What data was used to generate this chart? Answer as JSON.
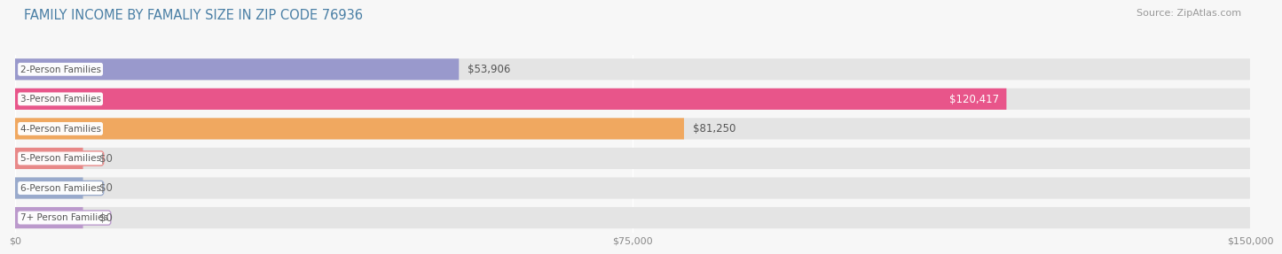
{
  "title": "FAMILY INCOME BY FAMALIY SIZE IN ZIP CODE 76936",
  "source": "Source: ZipAtlas.com",
  "categories": [
    "2-Person Families",
    "3-Person Families",
    "4-Person Families",
    "5-Person Families",
    "6-Person Families",
    "7+ Person Families"
  ],
  "values": [
    53906,
    120417,
    81250,
    0,
    0,
    0
  ],
  "bar_colors": [
    "#9999cc",
    "#e8558a",
    "#f0a860",
    "#e88888",
    "#99aacc",
    "#bb99cc"
  ],
  "value_label_colors": [
    "#444444",
    "#ffffff",
    "#444444",
    "#444444",
    "#444444",
    "#444444"
  ],
  "value_labels": [
    "$53,906",
    "$120,417",
    "$81,250",
    "$0",
    "$0",
    "$0"
  ],
  "zero_bar_colors": [
    "#e88888",
    "#aabbdd",
    "#ccaacc"
  ],
  "xlim": [
    0,
    150000
  ],
  "xtick_labels": [
    "$0",
    "$75,000",
    "$150,000"
  ],
  "background_color": "#f7f7f7",
  "bar_bg_color": "#e4e4e4",
  "title_color": "#4a7fa5",
  "source_color": "#999999",
  "label_text_color": "#555555",
  "title_fontsize": 10.5,
  "source_fontsize": 8,
  "label_fontsize": 7.5,
  "value_fontsize": 8.5,
  "tick_fontsize": 8
}
